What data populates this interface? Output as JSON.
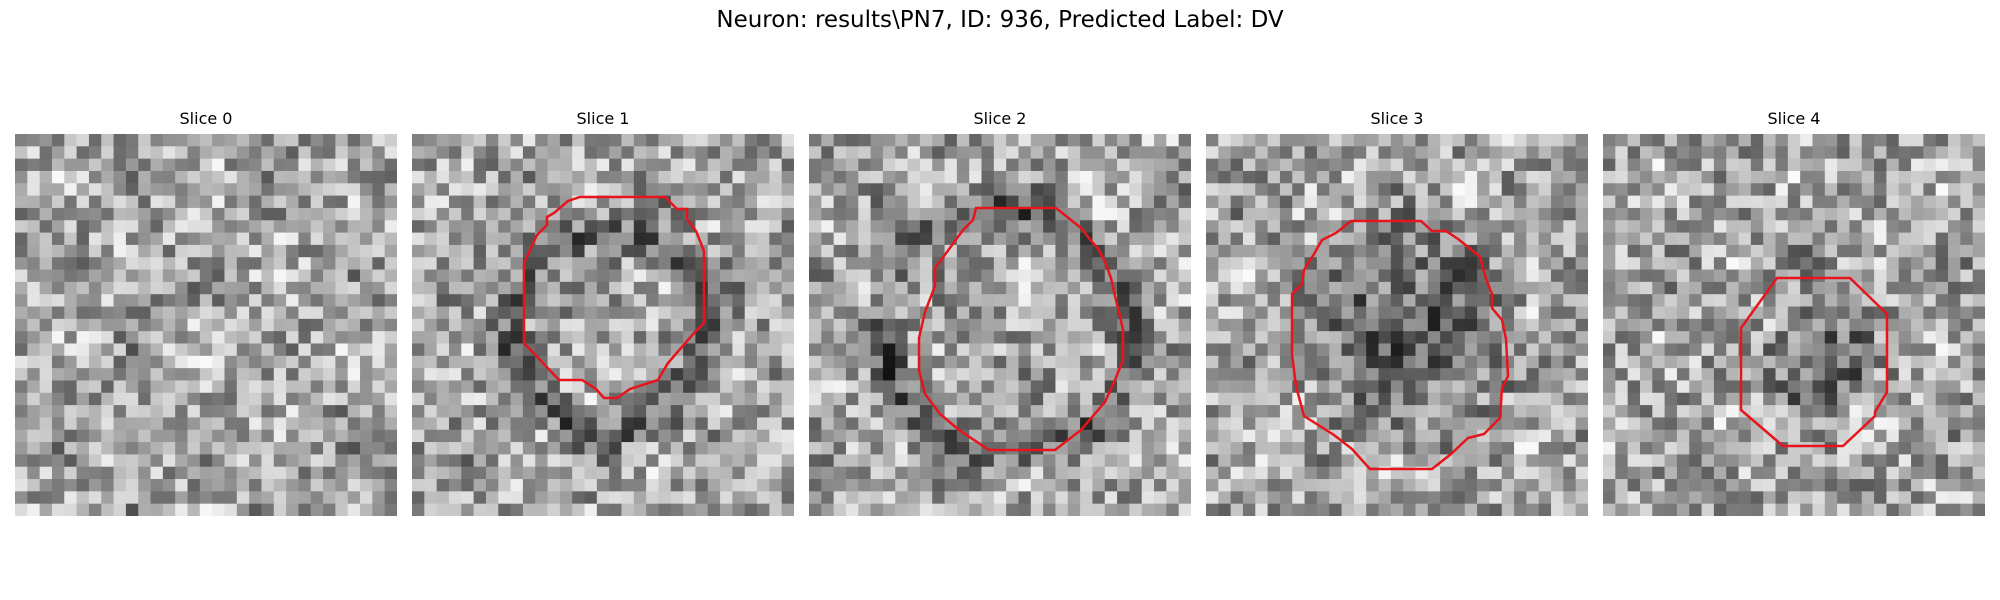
{
  "figure": {
    "title": "Neuron: results\\PN7, ID: 936, Predicted Label: DV"
  },
  "panels": [
    {
      "title": "Slice 0",
      "has_contour": false,
      "seed": 11,
      "dark_blob": false
    },
    {
      "title": "Slice 1",
      "has_contour": true,
      "seed": 23,
      "dark_blob": false
    },
    {
      "title": "Slice 2",
      "has_contour": true,
      "seed": 37,
      "dark_blob": false
    },
    {
      "title": "Slice 3",
      "has_contour": true,
      "seed": 51,
      "dark_blob": true
    },
    {
      "title": "Slice 4",
      "has_contour": true,
      "seed": 67,
      "dark_blob": true
    }
  ],
  "colors": {
    "contour": "#e8141c"
  }
}
